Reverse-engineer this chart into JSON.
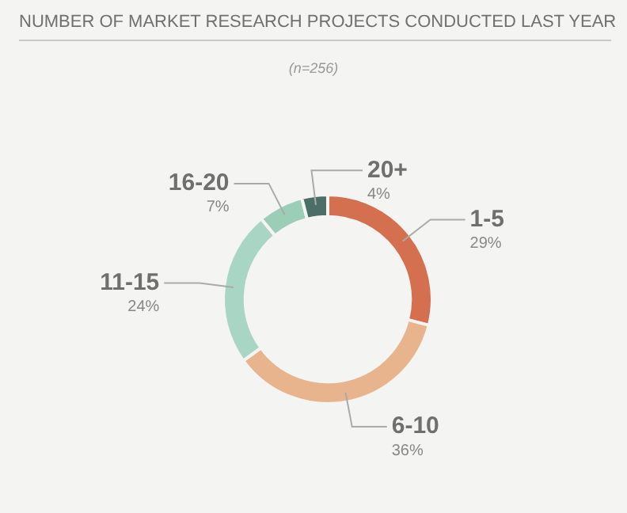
{
  "chart_data": {
    "type": "donut",
    "title": "NUMBER OF MARKET RESEARCH PROJECTS CONDUCTED LAST YEAR",
    "subtitle": "(n=256)",
    "categories": [
      "1-5",
      "6-10",
      "11-15",
      "16-20",
      "20+"
    ],
    "values": [
      29,
      36,
      24,
      7,
      4
    ],
    "value_labels": [
      "29%",
      "36%",
      "24%",
      "7%",
      "4%"
    ],
    "colors": [
      "#d4704f",
      "#e8b48e",
      "#a9d5c5",
      "#9ccdb6",
      "#4b6f67"
    ],
    "legend": false
  }
}
